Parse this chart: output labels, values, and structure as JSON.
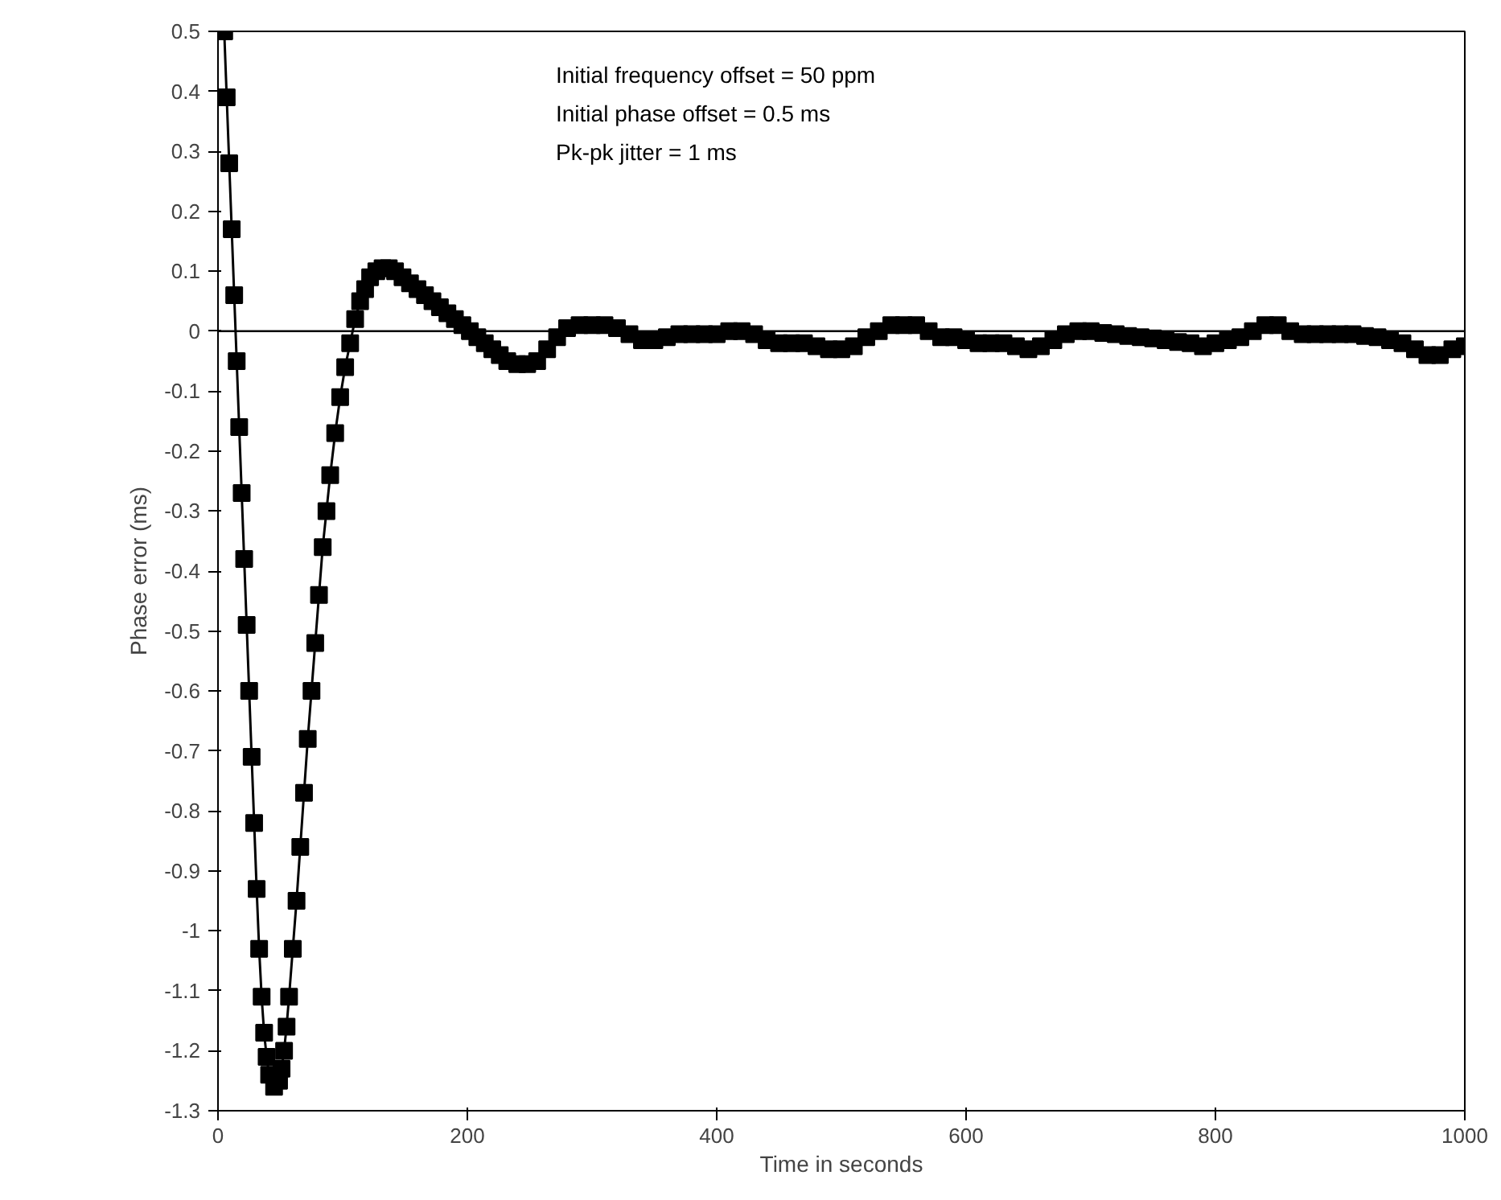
{
  "chart_data": {
    "type": "line",
    "xlabel": "Time in seconds",
    "ylabel": "Phase error (ms)",
    "annotations": [
      "Initial frequency offset = 50 ppm",
      "Initial phase offset = 0.5 ms",
      "Pk-pk jitter = 1 ms"
    ],
    "xlim": [
      0,
      1000
    ],
    "xticks": [
      0,
      200,
      400,
      600,
      800,
      1000
    ],
    "ylim": [
      -1.3,
      0.5
    ],
    "yticks": [
      {
        "value": 0.5,
        "label": "0.5"
      },
      {
        "value": 0.4,
        "label": "0.4"
      },
      {
        "value": 0.3,
        "label": "0.3"
      },
      {
        "value": 0.2,
        "label": "0.2"
      },
      {
        "value": 0.1,
        "label": "0.1"
      },
      {
        "value": 0,
        "label": "0"
      },
      {
        "value": -0.1,
        "label": "-0.1"
      },
      {
        "value": -0.2,
        "label": "-0.2"
      },
      {
        "value": -0.3,
        "label": "-0.3"
      },
      {
        "value": -0.4,
        "label": "-0.4"
      },
      {
        "value": -0.5,
        "label": "-0.5"
      },
      {
        "value": -0.6,
        "label": "-0.6"
      },
      {
        "value": -0.7,
        "label": "-0.7"
      },
      {
        "value": -0.8,
        "label": "-0.8"
      },
      {
        "value": -0.9,
        "label": "-0.9"
      },
      {
        "value": -1,
        "label": "-1"
      },
      {
        "value": -1.1,
        "label": "-1.1"
      },
      {
        "value": -1.2,
        "label": "-1.2"
      },
      {
        "value": -1.3,
        "label": "-1.3"
      }
    ],
    "grid": false,
    "marker": "square",
    "ref_lines": [
      {
        "axis": "y",
        "value": 0,
        "color": "#000000"
      }
    ],
    "x": [
      5,
      7,
      9,
      11,
      13,
      15,
      17,
      19,
      21,
      23,
      25,
      27,
      29,
      31,
      33,
      35,
      37,
      39,
      41,
      45,
      49,
      51,
      53,
      55,
      57,
      60,
      63,
      66,
      69,
      72,
      75,
      78,
      81,
      84,
      87,
      90,
      94,
      98,
      102,
      106,
      110,
      114,
      118,
      122,
      127,
      132,
      137,
      142,
      148,
      154,
      160,
      166,
      172,
      178,
      184,
      190,
      196,
      202,
      208,
      214,
      220,
      226,
      232,
      240,
      248,
      256,
      264,
      272,
      280,
      290,
      300,
      310,
      320,
      330,
      340,
      350,
      360,
      370,
      380,
      390,
      400,
      410,
      420,
      430,
      440,
      450,
      460,
      470,
      480,
      490,
      500,
      510,
      520,
      530,
      540,
      550,
      560,
      570,
      580,
      590,
      600,
      610,
      620,
      630,
      640,
      650,
      660,
      670,
      680,
      690,
      700,
      710,
      720,
      730,
      740,
      750,
      760,
      770,
      780,
      790,
      800,
      810,
      820,
      830,
      840,
      850,
      860,
      870,
      880,
      890,
      900,
      910,
      920,
      930,
      940,
      950,
      960,
      970,
      980,
      990,
      1000
    ],
    "series": [
      {
        "color": "#000000",
        "values": [
          0.5,
          0.39,
          0.28,
          0.17,
          0.06,
          -0.05,
          -0.16,
          -0.27,
          -0.38,
          -0.49,
          -0.6,
          -0.71,
          -0.82,
          -0.93,
          -1.03,
          -1.11,
          -1.17,
          -1.21,
          -1.24,
          -1.26,
          -1.25,
          -1.23,
          -1.2,
          -1.16,
          -1.11,
          -1.03,
          -0.95,
          -0.86,
          -0.77,
          -0.68,
          -0.6,
          -0.52,
          -0.44,
          -0.36,
          -0.3,
          -0.24,
          -0.17,
          -0.11,
          -0.06,
          -0.02,
          0.02,
          0.05,
          0.07,
          0.09,
          0.1,
          0.105,
          0.105,
          0.1,
          0.09,
          0.08,
          0.07,
          0.06,
          0.05,
          0.04,
          0.03,
          0.02,
          0.01,
          0.0,
          -0.01,
          -0.02,
          -0.03,
          -0.04,
          -0.05,
          -0.055,
          -0.055,
          -0.05,
          -0.03,
          -0.01,
          0.005,
          0.01,
          0.01,
          0.01,
          0.005,
          -0.005,
          -0.015,
          -0.015,
          -0.01,
          -0.005,
          -0.005,
          -0.005,
          -0.005,
          0.0,
          0.0,
          -0.005,
          -0.015,
          -0.02,
          -0.02,
          -0.02,
          -0.025,
          -0.03,
          -0.03,
          -0.025,
          -0.01,
          0.0,
          0.01,
          0.01,
          0.01,
          0.0,
          -0.01,
          -0.01,
          -0.015,
          -0.02,
          -0.02,
          -0.02,
          -0.025,
          -0.03,
          -0.025,
          -0.015,
          -0.005,
          0.0,
          0.0,
          -0.003,
          -0.005,
          -0.008,
          -0.01,
          -0.012,
          -0.015,
          -0.018,
          -0.02,
          -0.025,
          -0.02,
          -0.015,
          -0.01,
          0.0,
          0.01,
          0.01,
          0.0,
          -0.005,
          -0.005,
          -0.005,
          -0.005,
          -0.005,
          -0.008,
          -0.01,
          -0.015,
          -0.02,
          -0.03,
          -0.04,
          -0.04,
          -0.03,
          -0.025
        ]
      }
    ]
  }
}
